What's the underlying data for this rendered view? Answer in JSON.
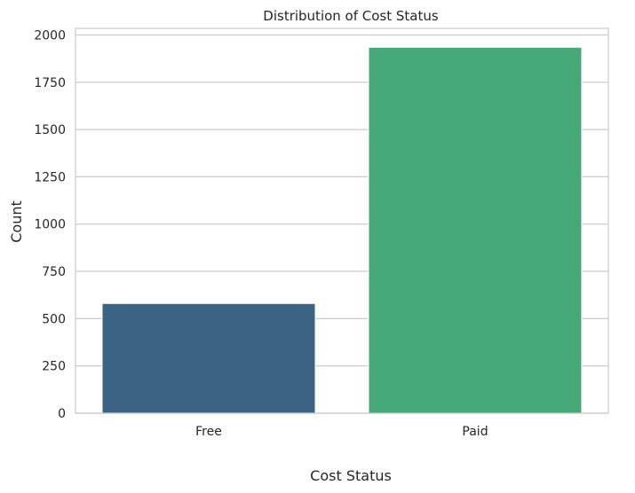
{
  "chart_data": {
    "type": "bar",
    "title": "Distribution of Cost Status",
    "xlabel": "Cost Status",
    "ylabel": "Count",
    "categories": [
      "Free",
      "Paid"
    ],
    "values": [
      580,
      1935
    ],
    "colors": [
      "#3b6484",
      "#45a877"
    ],
    "ylim": [
      0,
      2035
    ],
    "yticks": [
      0,
      250,
      500,
      750,
      1000,
      1250,
      1500,
      1750,
      2000
    ],
    "grid": "horizontal",
    "legend": "none"
  }
}
